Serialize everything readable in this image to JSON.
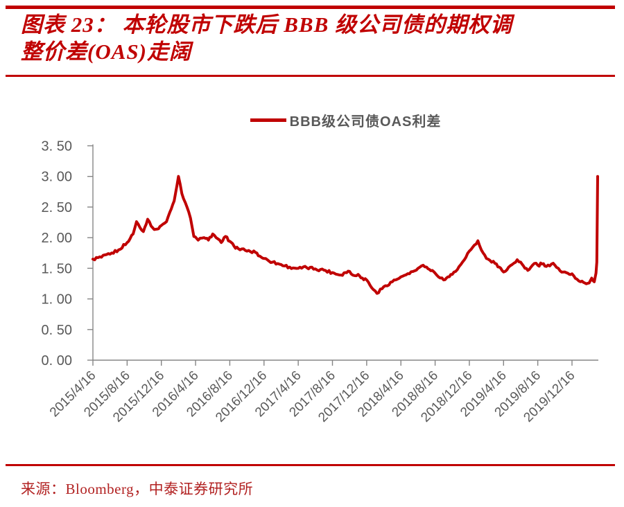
{
  "header": {
    "figure_title_line1": "图表 23： 本轮股市下跌后 BBB 级公司债的期权调",
    "figure_title_line2": "整价差(OAS)走阔",
    "accent_color": "#C00000"
  },
  "legend": {
    "label": "BBB级公司债OAS利差",
    "line_color": "#C00000"
  },
  "footer": {
    "source_text": "来源：Bloomberg，中泰证券研究所",
    "source_color": "#B22222"
  },
  "chart_data": {
    "type": "line",
    "title": "",
    "legend_entries": [
      "BBB级公司债OAS利差"
    ],
    "legend_position": "top-center",
    "grid": false,
    "line_color": "#C00000",
    "axis_color": "#858585",
    "tick_label_color": "#595959",
    "y_axis": {
      "min": 0,
      "max": 3.5,
      "step": 0.5,
      "tick_labels": [
        "0. 00",
        "0. 50",
        "1. 00",
        "1. 50",
        "2. 00",
        "2. 50",
        "3. 00",
        "3. 50"
      ]
    },
    "x_axis": {
      "tick_labels": [
        "2015/4/16",
        "2015/8/16",
        "2015/12/16",
        "2016/4/16",
        "2016/8/16",
        "2016/12/16",
        "2017/4/16",
        "2017/8/16",
        "2017/12/16",
        "2018/4/16",
        "2018/8/16",
        "2018/12/16",
        "2019/4/16",
        "2019/8/16",
        "2019/12/16"
      ],
      "tick_month_offsets": [
        0,
        4,
        8,
        12,
        16,
        20,
        24,
        28,
        32,
        36,
        40,
        44,
        48,
        52,
        56
      ],
      "data_end_month_offset": 59
    },
    "series": [
      {
        "name": "BBB级公司债OAS利差",
        "color": "#C00000",
        "points_month_value": [
          [
            0,
            1.65
          ],
          [
            1,
            1.68
          ],
          [
            2,
            1.73
          ],
          [
            3,
            1.8
          ],
          [
            4,
            1.92
          ],
          [
            4.7,
            2.06
          ],
          [
            5.1,
            2.26
          ],
          [
            5.9,
            2.1
          ],
          [
            6.4,
            2.3
          ],
          [
            7,
            2.16
          ],
          [
            7.5,
            2.14
          ],
          [
            8,
            2.2
          ],
          [
            8.6,
            2.26
          ],
          [
            9,
            2.42
          ],
          [
            9.5,
            2.6
          ],
          [
            10,
            3.0
          ],
          [
            10.4,
            2.72
          ],
          [
            11,
            2.5
          ],
          [
            11.4,
            2.32
          ],
          [
            11.8,
            2.02
          ],
          [
            12.3,
            1.96
          ],
          [
            13,
            2.0
          ],
          [
            13.5,
            1.96
          ],
          [
            14,
            2.06
          ],
          [
            14.4,
            2.0
          ],
          [
            15,
            1.92
          ],
          [
            15.5,
            2.02
          ],
          [
            16,
            1.94
          ],
          [
            16.5,
            1.86
          ],
          [
            17,
            1.82
          ],
          [
            18,
            1.78
          ],
          [
            19,
            1.76
          ],
          [
            19.5,
            1.7
          ],
          [
            20,
            1.66
          ],
          [
            21,
            1.6
          ],
          [
            22,
            1.56
          ],
          [
            23,
            1.52
          ],
          [
            24,
            1.5
          ],
          [
            25,
            1.51
          ],
          [
            26,
            1.49
          ],
          [
            27,
            1.47
          ],
          [
            28,
            1.43
          ],
          [
            29,
            1.39
          ],
          [
            29.5,
            1.43
          ],
          [
            30,
            1.45
          ],
          [
            30.6,
            1.38
          ],
          [
            31,
            1.4
          ],
          [
            31.5,
            1.34
          ],
          [
            32,
            1.31
          ],
          [
            32.6,
            1.18
          ],
          [
            33.2,
            1.09
          ],
          [
            34,
            1.2
          ],
          [
            35,
            1.28
          ],
          [
            36,
            1.36
          ],
          [
            37,
            1.41
          ],
          [
            38,
            1.5
          ],
          [
            38.6,
            1.55
          ],
          [
            39,
            1.52
          ],
          [
            39.5,
            1.46
          ],
          [
            40,
            1.42
          ],
          [
            41,
            1.31
          ],
          [
            41.5,
            1.36
          ],
          [
            42,
            1.4
          ],
          [
            43,
            1.56
          ],
          [
            44,
            1.78
          ],
          [
            44.6,
            1.88
          ],
          [
            45,
            1.95
          ],
          [
            45.4,
            1.8
          ],
          [
            46,
            1.66
          ],
          [
            47,
            1.58
          ],
          [
            47.5,
            1.52
          ],
          [
            48,
            1.44
          ],
          [
            48.6,
            1.52
          ],
          [
            49,
            1.56
          ],
          [
            49.6,
            1.64
          ],
          [
            50,
            1.6
          ],
          [
            50.5,
            1.5
          ],
          [
            51,
            1.48
          ],
          [
            51.6,
            1.58
          ],
          [
            52,
            1.55
          ],
          [
            52.5,
            1.57
          ],
          [
            53,
            1.53
          ],
          [
            53.6,
            1.57
          ],
          [
            54,
            1.55
          ],
          [
            54.6,
            1.46
          ],
          [
            55,
            1.44
          ],
          [
            55.5,
            1.42
          ],
          [
            56,
            1.41
          ],
          [
            56.6,
            1.32
          ],
          [
            57,
            1.28
          ],
          [
            57.5,
            1.26
          ],
          [
            58,
            1.26
          ],
          [
            58.3,
            1.34
          ],
          [
            58.6,
            1.28
          ],
          [
            58.8,
            1.42
          ],
          [
            58.9,
            1.6
          ],
          [
            59,
            3.0
          ]
        ]
      }
    ]
  }
}
